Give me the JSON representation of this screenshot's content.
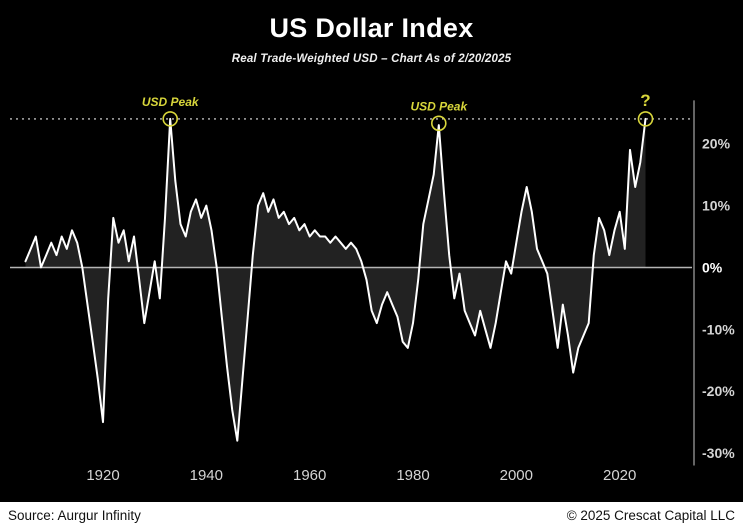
{
  "header": {
    "title": "US Dollar Index",
    "subtitle": "Real Trade-Weighted USD – Chart As of 2/20/2025"
  },
  "footer": {
    "source": "Source: Aurgur Infinity",
    "copyright": "© 2025 Crescat Capital LLC"
  },
  "colors": {
    "background": "#000000",
    "line": "#ffffff",
    "area_fill": "#222222",
    "accent": "#d8d63b",
    "axis_text": "#d4d4d4",
    "zero_line": "#b5b5b5",
    "reference": "#e6e6e6",
    "right_axis": "#c9c9c9",
    "footer_bg": "#ffffff",
    "footer_text": "#111111"
  },
  "chart_data": {
    "type": "line",
    "title": "US Dollar Index",
    "subtitle": "Real Trade-Weighted USD – Chart As of 2/20/2025",
    "xlabel": "",
    "ylabel": "",
    "xlim": [
      1902,
      2034
    ],
    "ylim": [
      -35,
      29
    ],
    "x_ticks": [
      1920,
      1940,
      1960,
      1980,
      2000,
      2020
    ],
    "y_ticks": [
      20,
      10,
      0,
      -10,
      -20,
      -30
    ],
    "y_tick_suffix": "%",
    "grid": false,
    "zero_line": true,
    "reference_line": {
      "value": 24,
      "style": "dotted"
    },
    "annotations": [
      {
        "label": "USD Peak",
        "year": 1933,
        "value": 24
      },
      {
        "label": "USD Peak",
        "year": 1985,
        "value": 23.3
      },
      {
        "label": "?",
        "year": 2025,
        "value": 24
      }
    ],
    "x": [
      1905,
      1906,
      1907,
      1908,
      1909,
      1910,
      1911,
      1912,
      1913,
      1914,
      1915,
      1916,
      1917,
      1918,
      1919,
      1920,
      1921,
      1922,
      1923,
      1924,
      1925,
      1926,
      1927,
      1928,
      1929,
      1930,
      1931,
      1932,
      1933,
      1934,
      1935,
      1936,
      1937,
      1938,
      1939,
      1940,
      1941,
      1942,
      1943,
      1944,
      1945,
      1946,
      1947,
      1948,
      1949,
      1950,
      1951,
      1952,
      1953,
      1954,
      1955,
      1956,
      1957,
      1958,
      1959,
      1960,
      1961,
      1962,
      1963,
      1964,
      1965,
      1966,
      1967,
      1968,
      1969,
      1970,
      1971,
      1972,
      1973,
      1974,
      1975,
      1976,
      1977,
      1978,
      1979,
      1980,
      1981,
      1982,
      1983,
      1984,
      1985,
      1986,
      1987,
      1988,
      1989,
      1990,
      1991,
      1992,
      1993,
      1994,
      1995,
      1996,
      1997,
      1998,
      1999,
      2000,
      2001,
      2002,
      2003,
      2004,
      2005,
      2006,
      2007,
      2008,
      2009,
      2010,
      2011,
      2012,
      2013,
      2014,
      2015,
      2016,
      2017,
      2018,
      2019,
      2020,
      2021,
      2022,
      2023,
      2024,
      2025
    ],
    "values": [
      1,
      3,
      5,
      0,
      2,
      4,
      2,
      5,
      3,
      6,
      4,
      0,
      -6,
      -12,
      -18,
      -25,
      -5,
      8,
      4,
      6,
      1,
      5,
      -2,
      -9,
      -4,
      1,
      -5,
      8,
      24,
      14,
      7,
      5,
      9,
      11,
      8,
      10,
      6,
      0,
      -8,
      -16,
      -23,
      -28,
      -18,
      -8,
      2,
      10,
      12,
      9,
      11,
      8,
      9,
      7,
      8,
      6,
      7,
      5,
      6,
      5,
      5,
      4,
      5,
      4,
      3,
      4,
      3,
      1,
      -2,
      -7,
      -9,
      -6,
      -4,
      -6,
      -8,
      -12,
      -13,
      -9,
      -2,
      7,
      11,
      15,
      23,
      12,
      2,
      -5,
      -1,
      -7,
      -9,
      -11,
      -7,
      -10,
      -13,
      -9,
      -4,
      1,
      -1,
      4,
      9,
      13,
      9,
      3,
      1,
      -1,
      -7,
      -13,
      -6,
      -11,
      -17,
      -13,
      -11,
      -9,
      2,
      8,
      6,
      2,
      6,
      9,
      3,
      19,
      13,
      17,
      24
    ]
  }
}
